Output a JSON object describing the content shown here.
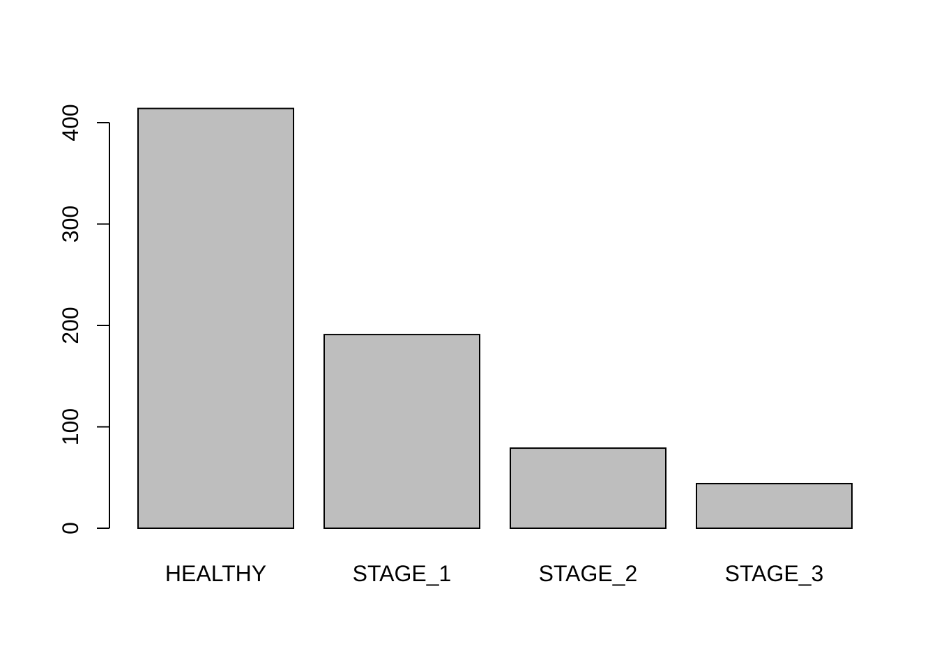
{
  "chart_data": {
    "type": "bar",
    "categories": [
      "HEALTHY",
      "STAGE_1",
      "STAGE_2",
      "STAGE_3"
    ],
    "values": [
      414,
      191,
      79,
      44
    ],
    "title": "",
    "xlabel": "",
    "ylabel": "",
    "ylim": [
      0,
      414
    ],
    "yticks": [
      0,
      100,
      200,
      300,
      400
    ],
    "grid": false,
    "colors": {
      "bar_fill": "#bebebe",
      "bar_stroke": "#000000"
    }
  }
}
